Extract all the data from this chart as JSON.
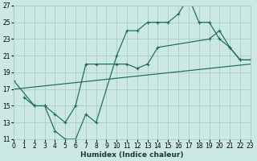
{
  "xlabel": "Humidex (Indice chaleur)",
  "bg_color": "#cce8e2",
  "grid_color": "#aaccc8",
  "line_color": "#1a6b5a",
  "xlim": [
    0,
    23
  ],
  "ylim": [
    11,
    27
  ],
  "xticks": [
    0,
    1,
    2,
    3,
    4,
    5,
    6,
    7,
    8,
    9,
    10,
    11,
    12,
    13,
    14,
    15,
    16,
    17,
    18,
    19,
    20,
    21,
    22,
    23
  ],
  "yticks": [
    11,
    13,
    15,
    17,
    19,
    21,
    23,
    25,
    27
  ],
  "curve1_x": [
    1,
    2,
    3,
    4,
    5,
    6,
    7,
    8,
    10,
    11,
    12,
    13,
    14,
    15,
    16,
    17,
    18,
    19,
    20,
    21,
    22,
    23
  ],
  "curve1_y": [
    16,
    15,
    15,
    12,
    11,
    11,
    14,
    13,
    21,
    24,
    24,
    25,
    25,
    25,
    26,
    28,
    25,
    25,
    23,
    22,
    20.5,
    20.5
  ],
  "curve2_x": [
    0,
    2,
    3,
    4,
    5,
    6,
    7,
    8,
    10,
    11,
    12,
    13,
    14,
    19,
    20,
    21,
    22,
    23
  ],
  "curve2_y": [
    18,
    15,
    15,
    14,
    13,
    15,
    20,
    20,
    20,
    20,
    19.5,
    20,
    22,
    23,
    24,
    22,
    20.5,
    20.5
  ],
  "curve3_x": [
    0,
    23
  ],
  "curve3_y": [
    17,
    20
  ],
  "marker_size": 3.5
}
